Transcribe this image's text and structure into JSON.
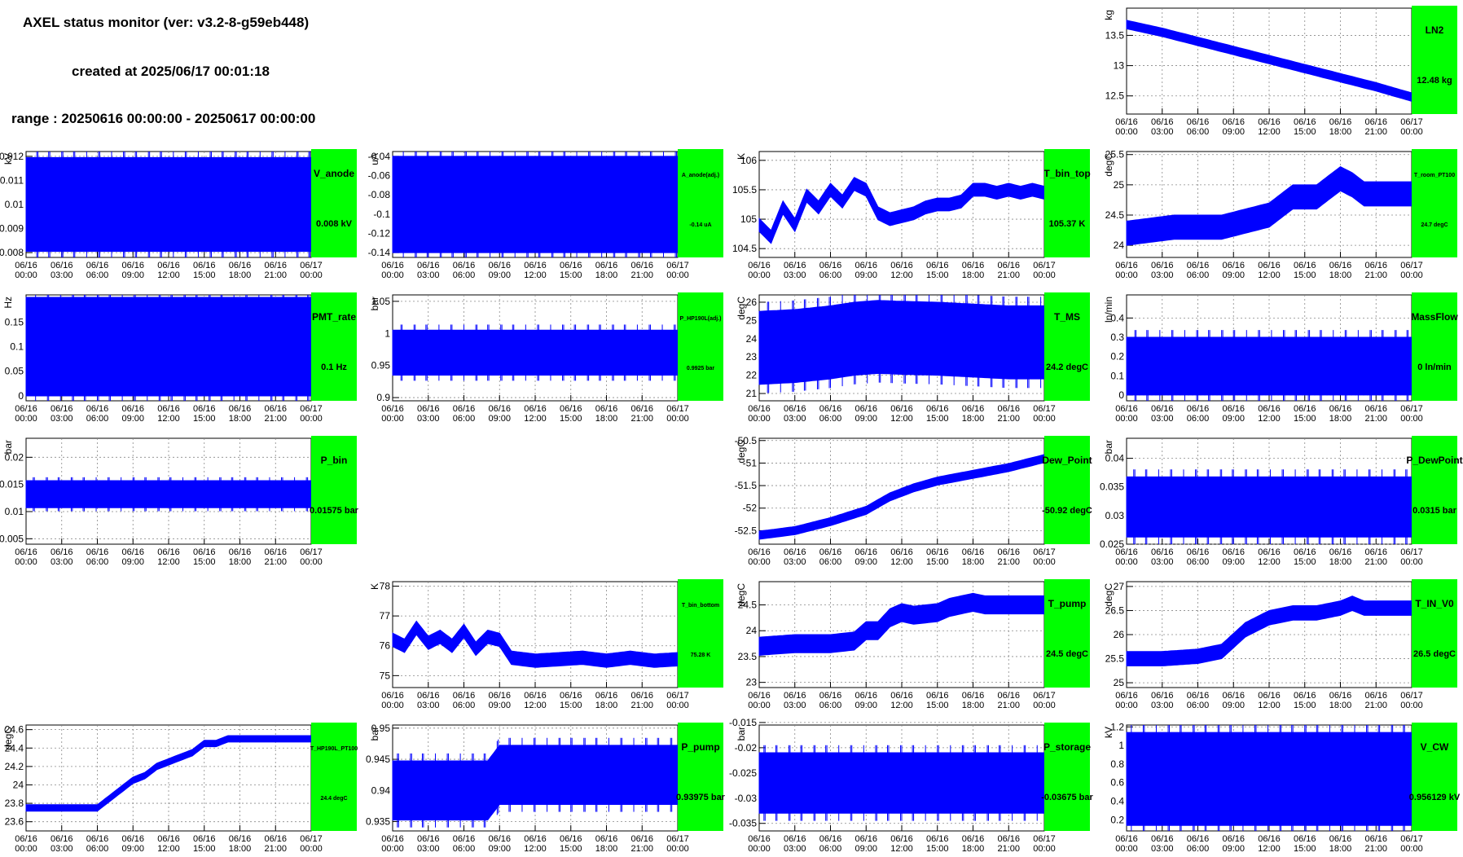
{
  "header": {
    "title": "AXEL status monitor (ver: v3.2-8-g59eb448)",
    "created": "created at 2025/06/17 00:01:18",
    "range": "range : 20250616 00:00:00 - 20250617 00:00:00"
  },
  "colors": {
    "series": "#0000ff",
    "status_box": "#00ff00",
    "frame": "#000000",
    "grid": "#888888"
  },
  "time_ticks": [
    [
      "06/16",
      "00:00"
    ],
    [
      "06/16",
      "03:00"
    ],
    [
      "06/16",
      "06:00"
    ],
    [
      "06/16",
      "09:00"
    ],
    [
      "06/16",
      "12:00"
    ],
    [
      "06/16",
      "15:00"
    ],
    [
      "06/16",
      "18:00"
    ],
    [
      "06/16",
      "21:00"
    ],
    [
      "06/17",
      "00:00"
    ]
  ],
  "chart_data": [
    {
      "id": "ln2",
      "type": "line",
      "name": "LN2",
      "status": "12.48 kg",
      "ylabel": "kg",
      "ylim": [
        12.2,
        13.95
      ],
      "yticks": [
        "12.5",
        "13",
        "13.5"
      ],
      "ytick_values": [
        12.5,
        13,
        13.5
      ],
      "x": [
        0,
        3,
        6,
        9,
        12,
        15,
        18,
        21,
        24
      ],
      "y": [
        13.68,
        13.55,
        13.4,
        13.25,
        13.1,
        12.95,
        12.8,
        12.65,
        12.48
      ],
      "band": 0.14
    },
    {
      "id": "v_anode",
      "type": "area",
      "name": "V_anode",
      "status": "0.008 kV",
      "ylabel": "kV",
      "ylim": [
        0.0078,
        0.0122
      ],
      "yticks": [
        "0.008",
        "0.009",
        "0.01",
        "0.011",
        "0.012"
      ],
      "ytick_values": [
        0.008,
        0.009,
        0.01,
        0.011,
        0.012
      ],
      "x": [
        0,
        24
      ],
      "y": [
        0.01,
        0.01
      ],
      "band": 0.0039
    },
    {
      "id": "a_anode",
      "type": "area",
      "name": "A_anode(adj.)",
      "status": "-0.14 uA",
      "ylabel": "uA",
      "ylim": [
        -0.145,
        -0.035
      ],
      "yticks": [
        "-0.14",
        "-0.12",
        "-0.1",
        "-0.08",
        "-0.06",
        "-0.04"
      ],
      "ytick_values": [
        -0.14,
        -0.12,
        -0.1,
        -0.08,
        -0.06,
        -0.04
      ],
      "x": [
        0,
        24
      ],
      "y": [
        -0.09,
        -0.09
      ],
      "band": 0.1
    },
    {
      "id": "t_bin_top",
      "type": "line",
      "name": "T_bin_top",
      "status": "105.37 K",
      "ylabel": "K",
      "ylim": [
        104.35,
        106.15
      ],
      "yticks": [
        "104.5",
        "105",
        "105.5",
        "106"
      ],
      "ytick_values": [
        104.5,
        105,
        105.5,
        106
      ],
      "x": [
        0,
        1,
        2,
        3,
        4,
        5,
        6,
        7,
        8,
        9,
        10,
        11,
        12,
        13,
        14,
        15,
        16,
        17,
        18,
        19,
        20,
        21,
        22,
        23,
        24
      ],
      "y": [
        104.9,
        104.7,
        105.2,
        104.9,
        105.4,
        105.2,
        105.5,
        105.3,
        105.6,
        105.5,
        105.1,
        105.0,
        105.05,
        105.1,
        105.2,
        105.25,
        105.25,
        105.3,
        105.5,
        105.5,
        105.45,
        105.5,
        105.45,
        105.5,
        105.45
      ],
      "band": 0.22
    },
    {
      "id": "t_room",
      "type": "line",
      "name": "T_room_PT100",
      "status": "24.7 degC",
      "ylabel": "degC",
      "ylim": [
        23.8,
        25.55
      ],
      "yticks": [
        "24",
        "24.5",
        "25",
        "25.5"
      ],
      "ytick_values": [
        24,
        24.5,
        25,
        25.5
      ],
      "x": [
        0,
        2,
        4,
        6,
        8,
        10,
        12,
        14,
        16,
        18,
        19,
        20,
        22,
        24
      ],
      "y": [
        24.2,
        24.25,
        24.3,
        24.3,
        24.3,
        24.4,
        24.5,
        24.8,
        24.8,
        25.1,
        25.0,
        24.85,
        24.85,
        24.85
      ],
      "band": 0.4
    },
    {
      "id": "pmt_rate",
      "type": "bar",
      "name": "PMT_rate",
      "status": "0.1 Hz",
      "ylabel": "Hz",
      "ylim": [
        -0.01,
        0.205
      ],
      "yticks": [
        "0",
        "0.05",
        "0.1",
        "0.15"
      ],
      "ytick_values": [
        0,
        0.05,
        0.1,
        0.15
      ],
      "x": [
        0,
        24
      ],
      "y": [
        0.1,
        0.1
      ],
      "band": 0.2
    },
    {
      "id": "p_hp190l",
      "type": "area",
      "name": "P_HP190L(adj.)",
      "status": "0.9925 bar",
      "ylabel": "bar",
      "ylim": [
        0.895,
        1.06
      ],
      "yticks": [
        "0.9",
        "0.95",
        "1",
        "1.05"
      ],
      "ytick_values": [
        0.9,
        0.95,
        1,
        1.05
      ],
      "x": [
        0,
        24
      ],
      "y": [
        0.97,
        0.97
      ],
      "band": 0.07
    },
    {
      "id": "t_ms",
      "type": "area",
      "name": "T_MS",
      "status": "24.2 degC",
      "ylabel": "degC",
      "ylim": [
        20.6,
        26.4
      ],
      "yticks": [
        "21",
        "22",
        "23",
        "24",
        "25",
        "26"
      ],
      "ytick_values": [
        21,
        22,
        23,
        24,
        25,
        26
      ],
      "x": [
        0,
        3,
        6,
        8,
        10,
        12,
        15,
        18,
        21,
        24
      ],
      "y": [
        23.5,
        23.6,
        23.8,
        24.0,
        24.1,
        24.05,
        24.0,
        23.9,
        23.8,
        23.8
      ],
      "band": 4.0
    },
    {
      "id": "massflow",
      "type": "area",
      "name": "MassFlow",
      "status": "0 ln/min",
      "ylabel": "ln/min",
      "ylim": [
        -0.03,
        0.52
      ],
      "yticks": [
        "0",
        "0.1",
        "0.2",
        "0.3",
        "0.4"
      ],
      "ytick_values": [
        0,
        0.1,
        0.2,
        0.3,
        0.4
      ],
      "x": [
        0,
        24
      ],
      "y": [
        0.15,
        0.15
      ],
      "band": 0.3
    },
    {
      "id": "p_bin",
      "type": "area",
      "name": "P_bin",
      "status": "0.01575 bar",
      "ylabel": "bar",
      "ylim": [
        0.004,
        0.0235
      ],
      "yticks": [
        "0.005",
        "0.01",
        "0.015",
        "0.02"
      ],
      "ytick_values": [
        0.005,
        0.01,
        0.015,
        0.02
      ],
      "x": [
        0,
        24
      ],
      "y": [
        0.0132,
        0.0132
      ],
      "band": 0.005
    },
    {
      "id": "dew_point",
      "type": "line",
      "name": "Dew_Point",
      "status": "-50.92 degC",
      "ylabel": "degC",
      "ylim": [
        -52.8,
        -50.45
      ],
      "yticks": [
        "-52.5",
        "-52",
        "-51.5",
        "-51",
        "-50.5"
      ],
      "ytick_values": [
        -52.5,
        -52,
        -51.5,
        -51,
        -50.5
      ],
      "x": [
        0,
        3,
        6,
        9,
        11,
        13,
        15,
        17,
        19,
        21,
        24
      ],
      "y": [
        -52.6,
        -52.5,
        -52.3,
        -52.05,
        -51.75,
        -51.55,
        -51.4,
        -51.3,
        -51.2,
        -51.1,
        -50.9
      ],
      "band": 0.18
    },
    {
      "id": "p_dewpoint",
      "type": "area",
      "name": "P_DewPoint",
      "status": "0.0315 bar",
      "ylabel": "bar",
      "ylim": [
        0.025,
        0.0435
      ],
      "yticks": [
        "0.025",
        "0.03",
        "0.035",
        "0.04"
      ],
      "ytick_values": [
        0.025,
        0.03,
        0.035,
        0.04
      ],
      "x": [
        0,
        24
      ],
      "y": [
        0.0315,
        0.0315
      ],
      "band": 0.0105
    },
    {
      "id": "t_bin_bottom",
      "type": "line",
      "name": "T_bin_bottom",
      "status": "75.28 K",
      "ylabel": "K",
      "ylim": [
        74.6,
        78.15
      ],
      "yticks": [
        "75",
        "76",
        "77",
        "78"
      ],
      "ytick_values": [
        75,
        76,
        77,
        78
      ],
      "x": [
        0,
        1,
        2,
        3,
        4,
        5,
        6,
        7,
        8,
        9,
        10,
        12,
        14,
        16,
        18,
        20,
        22,
        24
      ],
      "y": [
        76.2,
        76.0,
        76.6,
        76.1,
        76.3,
        76.0,
        76.5,
        75.9,
        76.3,
        76.2,
        75.6,
        75.5,
        75.55,
        75.6,
        75.5,
        75.6,
        75.5,
        75.55
      ],
      "band": 0.45
    },
    {
      "id": "t_pump",
      "type": "line",
      "name": "T_pump",
      "status": "24.5 degC",
      "ylabel": "degC",
      "ylim": [
        22.9,
        24.95
      ],
      "yticks": [
        "23",
        "23.5",
        "24",
        "24.5"
      ],
      "ytick_values": [
        23,
        23.5,
        24,
        24.5
      ],
      "x": [
        0,
        3,
        6,
        8,
        9,
        10,
        11,
        12,
        13,
        15,
        16,
        18,
        19,
        21,
        22,
        24
      ],
      "y": [
        23.7,
        23.75,
        23.75,
        23.8,
        24.0,
        24.0,
        24.25,
        24.35,
        24.3,
        24.35,
        24.45,
        24.55,
        24.5,
        24.5,
        24.5,
        24.5
      ],
      "band": 0.35
    },
    {
      "id": "t_in_v0",
      "type": "line",
      "name": "T_IN_V0",
      "status": "26.5 degC",
      "ylabel": "degC",
      "ylim": [
        24.9,
        27.1
      ],
      "yticks": [
        "25",
        "25.5",
        "26",
        "26.5",
        "27"
      ],
      "ytick_values": [
        25,
        25.5,
        26,
        26.5,
        27
      ],
      "x": [
        0,
        3,
        6,
        8,
        10,
        12,
        14,
        16,
        18,
        19,
        20,
        22,
        24
      ],
      "y": [
        25.5,
        25.5,
        25.55,
        25.65,
        26.1,
        26.35,
        26.45,
        26.45,
        26.55,
        26.65,
        26.55,
        26.55,
        26.55
      ],
      "band": 0.3
    },
    {
      "id": "t_hp190l",
      "type": "line",
      "name": "T_HP190L_PT100",
      "status": "24.4 degC",
      "ylabel": "degC",
      "ylim": [
        23.5,
        24.65
      ],
      "yticks": [
        "23.6",
        "23.8",
        "24",
        "24.2",
        "24.4",
        "24.6"
      ],
      "ytick_values": [
        23.6,
        23.8,
        24,
        24.2,
        24.4,
        24.6
      ],
      "x": [
        0,
        6,
        7,
        8,
        9,
        10,
        11,
        12,
        13,
        14,
        15,
        16,
        17,
        18,
        24
      ],
      "y": [
        23.75,
        23.75,
        23.85,
        23.95,
        24.05,
        24.1,
        24.2,
        24.25,
        24.3,
        24.35,
        24.45,
        24.45,
        24.5,
        24.5,
        24.5
      ],
      "band": 0.07
    },
    {
      "id": "p_pump",
      "type": "area",
      "name": "P_pump",
      "status": "0.93975 bar",
      "ylabel": "bar",
      "ylim": [
        0.9335,
        0.9505
      ],
      "yticks": [
        "0.935",
        "0.94",
        "0.945",
        "0.95"
      ],
      "ytick_values": [
        0.935,
        0.94,
        0.945,
        0.95
      ],
      "x": [
        0,
        8,
        9,
        24
      ],
      "y": [
        0.94,
        0.94,
        0.9425,
        0.9425
      ],
      "band": 0.0095
    },
    {
      "id": "p_storage",
      "type": "area",
      "name": "P_storage",
      "status": "-0.03675 bar",
      "ylabel": "bar",
      "ylim": [
        -0.0365,
        -0.0155
      ],
      "yticks": [
        "-0.035",
        "-0.03",
        "-0.025",
        "-0.02",
        "-0.015"
      ],
      "ytick_values": [
        -0.035,
        -0.03,
        -0.025,
        -0.02,
        -0.015
      ],
      "x": [
        0,
        24
      ],
      "y": [
        -0.027,
        -0.027
      ],
      "band": 0.012
    },
    {
      "id": "v_cw",
      "type": "area",
      "name": "V_CW",
      "status": "0.956129 kV",
      "ylabel": "kV",
      "ylim": [
        0.08,
        1.22
      ],
      "yticks": [
        "0.2",
        "0.4",
        "0.6",
        "0.8",
        "1",
        "1.2"
      ],
      "ytick_values": [
        0.2,
        0.4,
        0.6,
        0.8,
        1,
        1.2
      ],
      "x": [
        0,
        24
      ],
      "y": [
        0.64,
        0.64
      ],
      "band": 1.0
    }
  ]
}
